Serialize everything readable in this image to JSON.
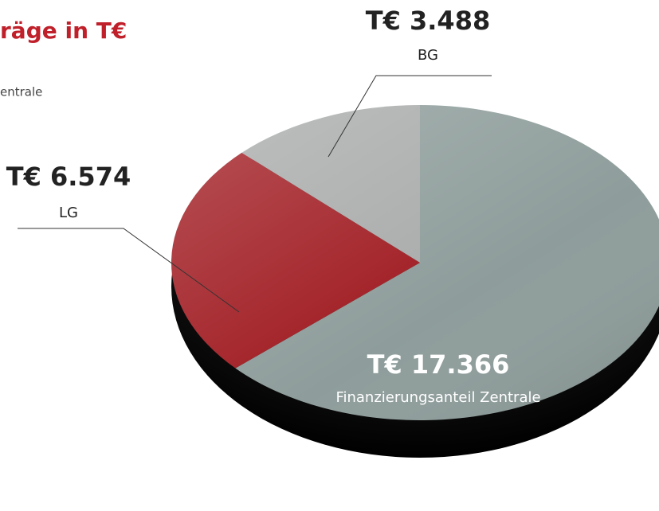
{
  "chart_data": {
    "type": "pie",
    "title": "räge in T€",
    "subtitle": "entrale",
    "categories": [
      "Finanzierungsanteil Zentrale",
      "LG",
      "BG"
    ],
    "values": [
      17366,
      6574,
      3488
    ],
    "value_labels": [
      "T€ 17.366",
      "T€ 6.574",
      "T€ 3.488"
    ],
    "colors": [
      "#8e9d9b",
      "#a01c22",
      "#a9abab"
    ]
  }
}
